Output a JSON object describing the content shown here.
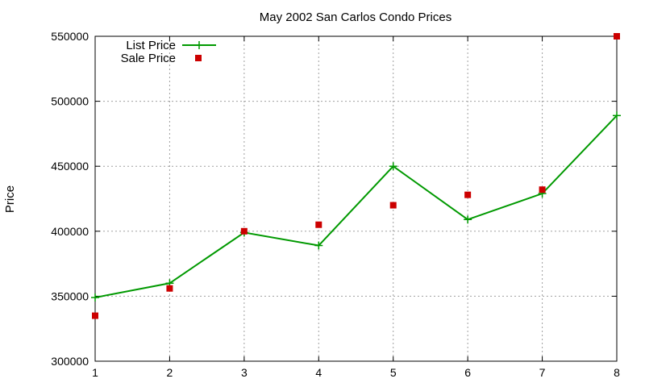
{
  "chart_data": {
    "type": "line",
    "title": "May 2002 San Carlos Condo Prices",
    "xlabel": "",
    "ylabel": "Price",
    "x": [
      1,
      2,
      3,
      4,
      5,
      6,
      7,
      8
    ],
    "xlim": [
      1,
      8
    ],
    "ylim": [
      300000,
      550000
    ],
    "x_ticks": [
      "1",
      "2",
      "3",
      "4",
      "5",
      "6",
      "7",
      "8"
    ],
    "y_ticks": [
      "300000",
      "350000",
      "400000",
      "450000",
      "500000",
      "550000"
    ],
    "grid": true,
    "legend_position": "top-left",
    "series": [
      {
        "name": "List Price",
        "style": "linespoints",
        "marker": "plus",
        "color": "#009900",
        "values": [
          349000,
          360000,
          399000,
          389000,
          450000,
          409000,
          429000,
          489000
        ]
      },
      {
        "name": "Sale Price",
        "style": "points",
        "marker": "square",
        "color": "#cc0000",
        "values": [
          335000,
          356000,
          400000,
          405000,
          420000,
          428000,
          432000,
          550000
        ]
      }
    ]
  }
}
